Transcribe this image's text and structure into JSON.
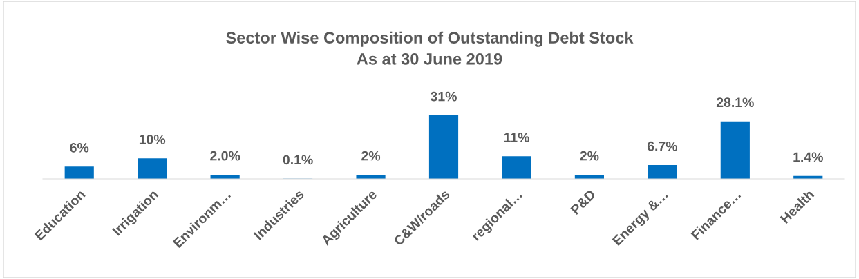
{
  "chart_data": {
    "type": "bar",
    "title": "Sector Wise Composition of Outstanding Debt Stock\nAs at 30 June 2019",
    "categories": [
      "Education",
      "Irrigation",
      "Environm…",
      "Industries",
      "Agriculture",
      "C&W/roads",
      "regional…",
      "P&D",
      "Energy &…",
      "Finance…",
      "Health"
    ],
    "values": [
      6,
      10,
      2.0,
      0.1,
      2,
      31,
      11,
      2,
      6.7,
      28.1,
      1.4
    ],
    "value_labels": [
      "6%",
      "10%",
      "2.0%",
      "0.1%",
      "2%",
      "31%",
      "11%",
      "2%",
      "6.7%",
      "28.1%",
      "1.4%"
    ],
    "color": "#0070c0"
  }
}
